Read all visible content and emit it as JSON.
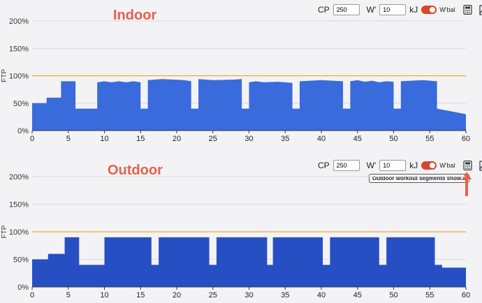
{
  "panels": [
    {
      "title": "Indoor",
      "controls": {
        "cp_label": "CP",
        "cp_value": "250",
        "w_label": "W'",
        "w_value": "10",
        "w_unit": "kJ",
        "wbal_label": "W'bal",
        "wbal_on": true
      },
      "tooltip": null,
      "chart_data": {
        "type": "area",
        "title": "",
        "ylabel": "FTP",
        "xlim": [
          0,
          60
        ],
        "ylim": [
          0,
          200
        ],
        "x_ticks": [
          0,
          5,
          10,
          15,
          20,
          25,
          30,
          35,
          40,
          45,
          50,
          55,
          60
        ],
        "y_ticks": [
          0,
          50,
          100,
          150,
          200
        ],
        "y_tick_labels": [
          "0%",
          "50%",
          "100%",
          "150%",
          "200%"
        ],
        "reference_line": {
          "y": 100,
          "color": "#f0a630"
        },
        "fill_color": "#3a6bdc",
        "points": [
          [
            0,
            50
          ],
          [
            2,
            50
          ],
          [
            2,
            60
          ],
          [
            4,
            60
          ],
          [
            4,
            90
          ],
          [
            6,
            90
          ],
          [
            6,
            40
          ],
          [
            9,
            40
          ],
          [
            9,
            88
          ],
          [
            10,
            90
          ],
          [
            11,
            88
          ],
          [
            12,
            90
          ],
          [
            13,
            88
          ],
          [
            14,
            90
          ],
          [
            15,
            88
          ],
          [
            15,
            40
          ],
          [
            16,
            40
          ],
          [
            16,
            92
          ],
          [
            18,
            94
          ],
          [
            21,
            92
          ],
          [
            22,
            90
          ],
          [
            22,
            40
          ],
          [
            23,
            40
          ],
          [
            23,
            94
          ],
          [
            25,
            92
          ],
          [
            28,
            93
          ],
          [
            29,
            94
          ],
          [
            29,
            40
          ],
          [
            30,
            40
          ],
          [
            30,
            88
          ],
          [
            31,
            90
          ],
          [
            32,
            88
          ],
          [
            34,
            89
          ],
          [
            35,
            88
          ],
          [
            36,
            87
          ],
          [
            36,
            40
          ],
          [
            37,
            40
          ],
          [
            37,
            90
          ],
          [
            40,
            92
          ],
          [
            43,
            90
          ],
          [
            43,
            40
          ],
          [
            44,
            40
          ],
          [
            44,
            90
          ],
          [
            45,
            92
          ],
          [
            46,
            89
          ],
          [
            47,
            91
          ],
          [
            48,
            88
          ],
          [
            49,
            90
          ],
          [
            50,
            89
          ],
          [
            50,
            40
          ],
          [
            51,
            40
          ],
          [
            51,
            90
          ],
          [
            54,
            92
          ],
          [
            56,
            90
          ],
          [
            56,
            40
          ],
          [
            60,
            30
          ]
        ]
      }
    },
    {
      "title": "Outdoor",
      "controls": {
        "cp_label": "CP",
        "cp_value": "250",
        "w_label": "W'",
        "w_value": "10",
        "w_unit": "kJ",
        "wbal_label": "W'bal",
        "wbal_on": true
      },
      "tooltip": "Outdoor workout segments show...",
      "chart_data": {
        "type": "area",
        "title": "",
        "ylabel": "FTP",
        "xlim": [
          0,
          60
        ],
        "ylim": [
          0,
          200
        ],
        "x_ticks": [
          0,
          5,
          10,
          15,
          20,
          25,
          30,
          35,
          40,
          45,
          50,
          55,
          60
        ],
        "y_ticks": [
          0,
          50,
          100,
          150,
          200
        ],
        "y_tick_labels": [
          "0%",
          "50%",
          "100%",
          "150%",
          "200%"
        ],
        "reference_line": {
          "y": 100,
          "color": "#f0a630"
        },
        "fill_color": "#274fc4",
        "points": [
          [
            0,
            50
          ],
          [
            2.2,
            50
          ],
          [
            2.2,
            60
          ],
          [
            4.5,
            60
          ],
          [
            4.5,
            90
          ],
          [
            6.5,
            90
          ],
          [
            6.5,
            40
          ],
          [
            10,
            40
          ],
          [
            10,
            90
          ],
          [
            16.5,
            90
          ],
          [
            16.5,
            40
          ],
          [
            17.5,
            40
          ],
          [
            17.5,
            90
          ],
          [
            24.5,
            90
          ],
          [
            24.5,
            40
          ],
          [
            25.5,
            40
          ],
          [
            25.5,
            90
          ],
          [
            32.5,
            90
          ],
          [
            32.5,
            40
          ],
          [
            33.3,
            40
          ],
          [
            33.3,
            90
          ],
          [
            40.2,
            90
          ],
          [
            40.2,
            40
          ],
          [
            41.2,
            40
          ],
          [
            41.2,
            90
          ],
          [
            48,
            90
          ],
          [
            48,
            40
          ],
          [
            49,
            40
          ],
          [
            49,
            90
          ],
          [
            55.7,
            90
          ],
          [
            55.7,
            40
          ],
          [
            56.7,
            40
          ],
          [
            56.7,
            35
          ],
          [
            60,
            35
          ]
        ]
      }
    }
  ]
}
